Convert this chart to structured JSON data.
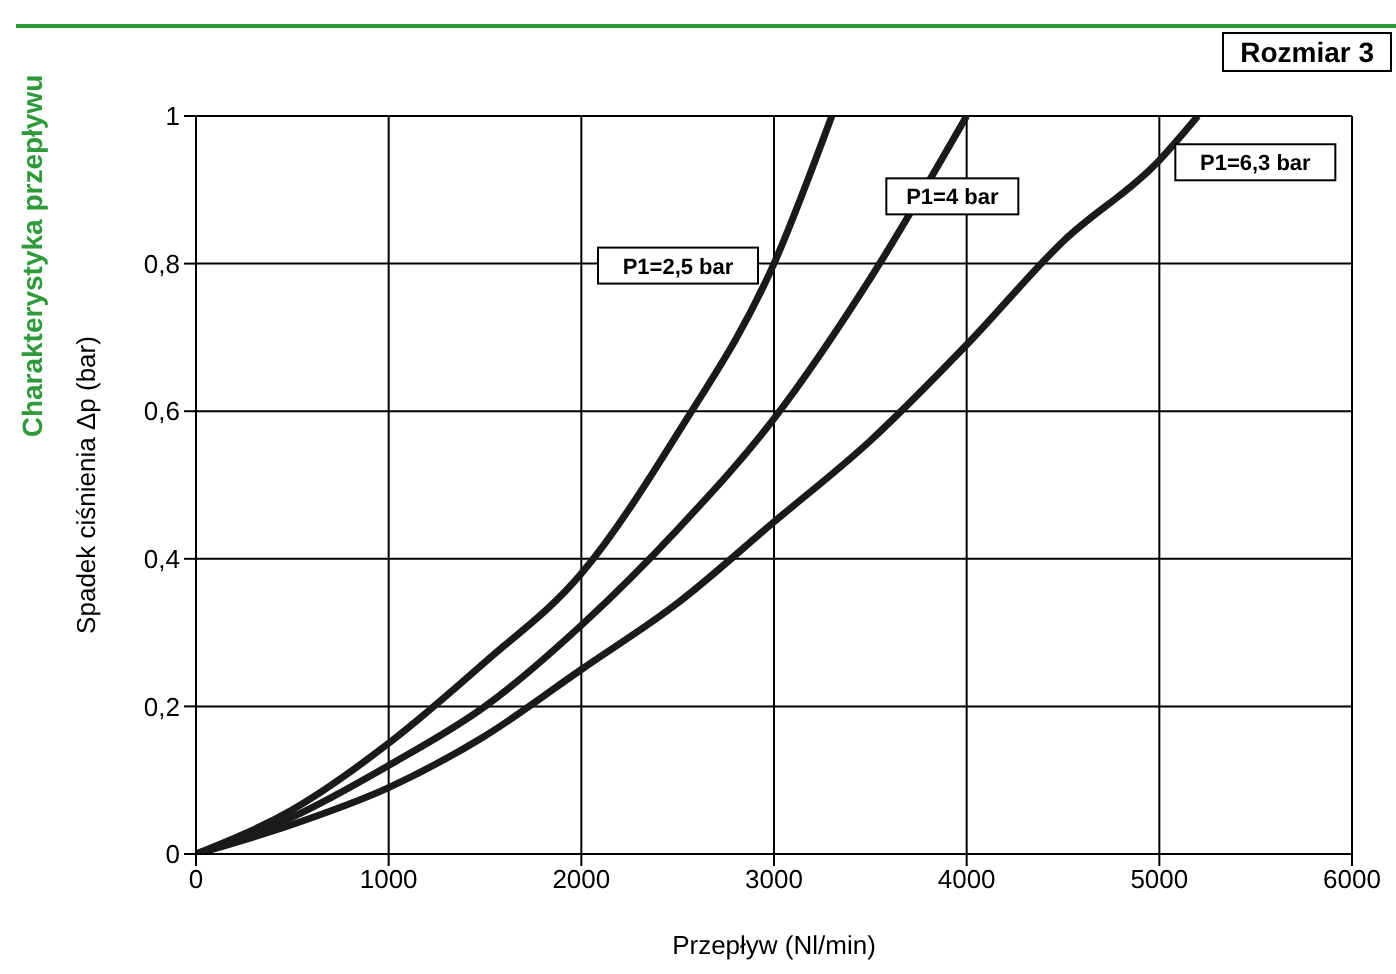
{
  "chart_data": {
    "type": "line",
    "title": "Charakterystyka przepływu",
    "subtitle": "Rozmiar 3",
    "xlabel": "Przepływ (Nl/min)",
    "ylabel": "Spadek ciśnienia Δp (bar)",
    "xlim": [
      0,
      6000
    ],
    "xticks": [
      0,
      1000,
      2000,
      3000,
      4000,
      5000,
      6000
    ],
    "ylim": [
      0,
      1
    ],
    "yticks": [
      0,
      {
        "value": 0.2,
        "label": "0,2"
      },
      {
        "value": 0.4,
        "label": "0,4"
      },
      {
        "value": 0.6,
        "label": "0,6"
      },
      {
        "value": 0.8,
        "label": "0,8"
      },
      1
    ],
    "grid": true,
    "marker": "none",
    "line_style": "solid",
    "series": [
      {
        "name": "P1=2,5 bar",
        "color": "#1a1a1a",
        "x": [
          0,
          500,
          1000,
          1500,
          2000,
          2500,
          3000,
          3300
        ],
        "values": [
          0,
          0.06,
          0.15,
          0.26,
          0.38,
          0.57,
          0.8,
          1
        ]
      },
      {
        "name": "P1=4 bar",
        "color": "#1a1a1a",
        "x": [
          0,
          500,
          1000,
          1500,
          2000,
          2500,
          3000,
          3500,
          4000
        ],
        "values": [
          0,
          0.05,
          0.12,
          0.2,
          0.31,
          0.44,
          0.59,
          0.78,
          1
        ]
      },
      {
        "name": "P1=6,3 bar",
        "color": "#1a1a1a",
        "x": [
          0,
          500,
          1000,
          1500,
          2000,
          2500,
          3000,
          3500,
          4000,
          4500,
          5000,
          5200
        ],
        "values": [
          0,
          0.04,
          0.09,
          0.16,
          0.25,
          0.34,
          0.45,
          0.56,
          0.69,
          0.83,
          0.94,
          1
        ]
      }
    ]
  }
}
